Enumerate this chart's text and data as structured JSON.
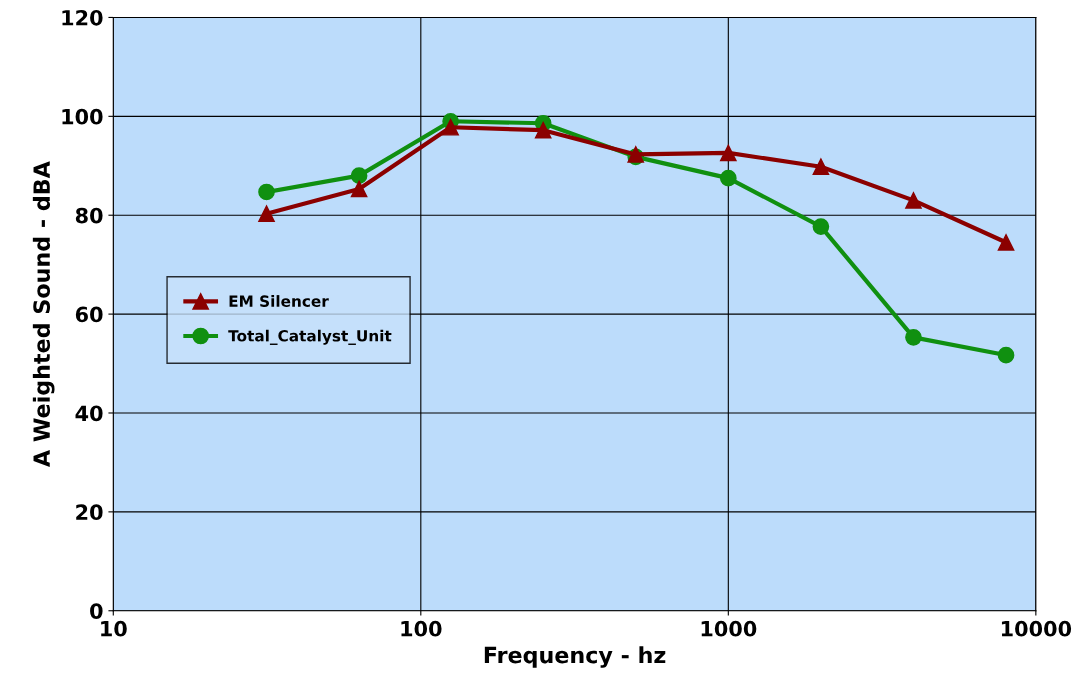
{
  "chart_data": {
    "type": "line",
    "xlabel": "Frequency - hz",
    "ylabel": "A Weighted Sound - dBA",
    "log": "x",
    "x": [
      31.5,
      63,
      125,
      250,
      500,
      1000,
      2000,
      4000,
      8000
    ],
    "series": [
      {
        "name": "EM Silencer",
        "color": "#8b0000",
        "marker": "triangle",
        "values": [
          80.3,
          85.3,
          97.8,
          97.2,
          92.3,
          92.6,
          89.8,
          83.0,
          74.5
        ]
      },
      {
        "name": "Total_Catalyst_Unit",
        "color": "#109010",
        "marker": "circle",
        "values": [
          84.7,
          88.0,
          99.0,
          98.6,
          91.8,
          87.5,
          77.7,
          55.3,
          51.7
        ]
      }
    ],
    "xlim": [
      10,
      10000
    ],
    "xticks": [
      10,
      100,
      1000,
      10000
    ],
    "ylim": [
      0,
      120
    ],
    "yticks": [
      0,
      20,
      40,
      60,
      80,
      100,
      120
    ],
    "grid": true,
    "legend": "center left",
    "line_style": "solid"
  }
}
